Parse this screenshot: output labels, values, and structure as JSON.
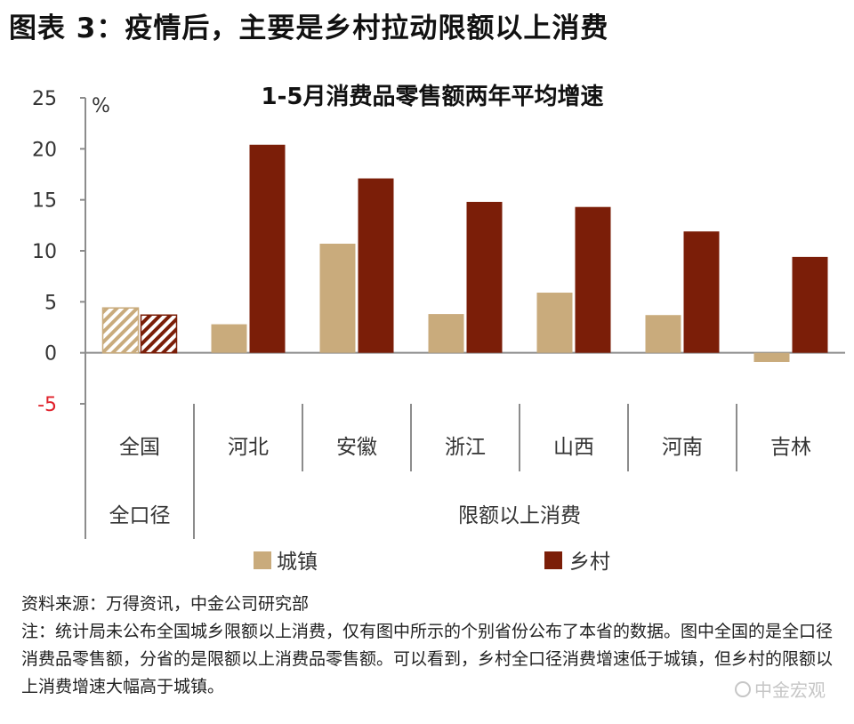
{
  "figure_title": "图表 3：疫情后，主要是乡村拉动限额以上消费",
  "chart_data": {
    "type": "bar",
    "title": "1-5月消费品零售额两年平均增速",
    "ylabel": "%",
    "ylim": [
      -5,
      25
    ],
    "yticks": [
      25,
      20,
      15,
      10,
      5,
      0,
      -5
    ],
    "grid": false,
    "legend_position": "bottom",
    "categories": [
      "全国",
      "河北",
      "安徽",
      "浙江",
      "山西",
      "河南",
      "吉林"
    ],
    "groups": [
      {
        "label": "全口径",
        "categories": [
          "全国"
        ]
      },
      {
        "label": "限额以上消费",
        "categories": [
          "河北",
          "安徽",
          "浙江",
          "山西",
          "河南",
          "吉林"
        ]
      }
    ],
    "series": [
      {
        "name": "城镇",
        "color": "#c9ab7c",
        "values": [
          4.4,
          2.8,
          10.7,
          3.8,
          5.9,
          3.7,
          -0.9
        ]
      },
      {
        "name": "乡村",
        "color": "#7b1e08",
        "values": [
          3.7,
          20.4,
          17.1,
          14.8,
          14.3,
          11.9,
          9.4
        ]
      }
    ],
    "hatched_categories": [
      "全国"
    ]
  },
  "notes": {
    "source": "资料来源：万得资讯，中金公司研究部",
    "footnote": "注：统计局未公布全国城乡限额以上消费，仅有图中所示的个别省份公布了本省的数据。图中全国的是全口径消费品零售额，分省的是限额以上消费品零售额。可以看到，乡村全口径消费增速低于城镇，但乡村的限额以上消费增速大幅高于城镇。"
  },
  "watermark": "中金宏观",
  "colors": {
    "negative_tick": "#e0202a",
    "axis": "#8c8c8c"
  }
}
